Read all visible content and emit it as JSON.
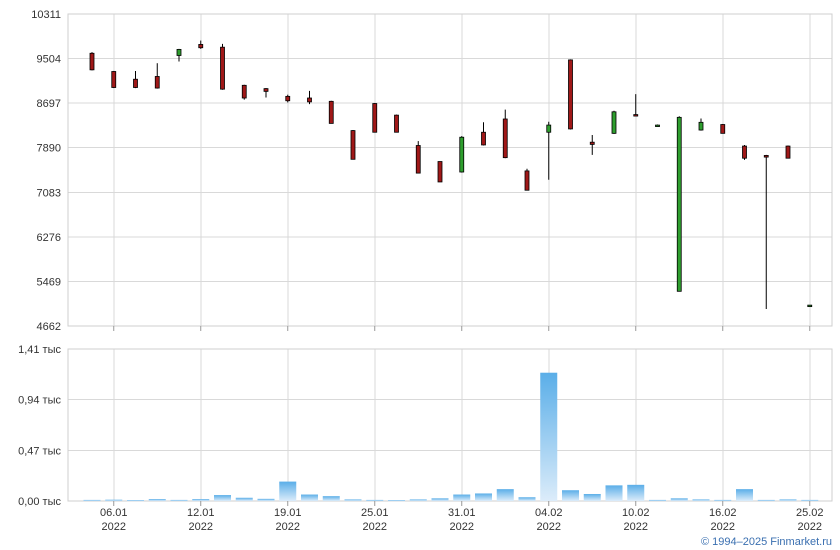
{
  "chart_data": [
    {
      "type": "candlestick",
      "y_ticks": [
        "10311",
        "9504",
        "8697",
        "7890",
        "7083",
        "6276",
        "5469",
        "4662"
      ],
      "ylim": [
        4662,
        10311
      ],
      "grid": true,
      "colors": {
        "up": "#2e9e2e",
        "down": "#a01818",
        "outline": "#000000"
      },
      "candles": [
        {
          "x": 1,
          "o": 9600,
          "h": 9620,
          "l": 9290,
          "c": 9300
        },
        {
          "x": 2,
          "o": 9270,
          "h": 9280,
          "l": 8970,
          "c": 8980
        },
        {
          "x": 3,
          "o": 9130,
          "h": 9280,
          "l": 8970,
          "c": 8980
        },
        {
          "x": 4,
          "o": 9180,
          "h": 9420,
          "l": 8960,
          "c": 8970
        },
        {
          "x": 5,
          "o": 9560,
          "h": 9680,
          "l": 9450,
          "c": 9670
        },
        {
          "x": 6,
          "o": 9760,
          "h": 9830,
          "l": 9680,
          "c": 9700
        },
        {
          "x": 7,
          "o": 9710,
          "h": 9770,
          "l": 8940,
          "c": 8950
        },
        {
          "x": 8,
          "o": 9020,
          "h": 9030,
          "l": 8760,
          "c": 8790
        },
        {
          "x": 9,
          "o": 8960,
          "h": 8970,
          "l": 8800,
          "c": 8910
        },
        {
          "x": 10,
          "o": 8820,
          "h": 8850,
          "l": 8710,
          "c": 8740
        },
        {
          "x": 11,
          "o": 8790,
          "h": 8920,
          "l": 8680,
          "c": 8720
        },
        {
          "x": 12,
          "o": 8730,
          "h": 8740,
          "l": 8330,
          "c": 8330
        },
        {
          "x": 13,
          "o": 8200,
          "h": 8210,
          "l": 7680,
          "c": 7680
        },
        {
          "x": 14,
          "o": 8690,
          "h": 8700,
          "l": 8170,
          "c": 8170
        },
        {
          "x": 15,
          "o": 8480,
          "h": 8490,
          "l": 8170,
          "c": 8170
        },
        {
          "x": 16,
          "o": 7930,
          "h": 8010,
          "l": 7430,
          "c": 7430
        },
        {
          "x": 17,
          "o": 7640,
          "h": 7640,
          "l": 7270,
          "c": 7270
        },
        {
          "x": 18,
          "o": 7450,
          "h": 8100,
          "l": 7440,
          "c": 8080
        },
        {
          "x": 19,
          "o": 8170,
          "h": 8350,
          "l": 7930,
          "c": 7940
        },
        {
          "x": 20,
          "o": 8410,
          "h": 8580,
          "l": 7700,
          "c": 7710
        },
        {
          "x": 21,
          "o": 7470,
          "h": 7510,
          "l": 7120,
          "c": 7120
        },
        {
          "x": 22,
          "o": 8170,
          "h": 8360,
          "l": 7310,
          "c": 8300
        },
        {
          "x": 23,
          "o": 9480,
          "h": 9490,
          "l": 8220,
          "c": 8230
        },
        {
          "x": 24,
          "o": 7990,
          "h": 8120,
          "l": 7760,
          "c": 7950
        },
        {
          "x": 25,
          "o": 8150,
          "h": 8560,
          "l": 8140,
          "c": 8540
        },
        {
          "x": 26,
          "o": 8490,
          "h": 8860,
          "l": 8470,
          "c": 8470
        },
        {
          "x": 27,
          "o": 8300,
          "h": 8310,
          "l": 8290,
          "c": 8300
        },
        {
          "x": 28,
          "o": 5290,
          "h": 8460,
          "l": 5290,
          "c": 8440
        },
        {
          "x": 29,
          "o": 8210,
          "h": 8420,
          "l": 8200,
          "c": 8350
        },
        {
          "x": 30,
          "o": 8310,
          "h": 8320,
          "l": 8150,
          "c": 8150
        },
        {
          "x": 31,
          "o": 7920,
          "h": 7940,
          "l": 7670,
          "c": 7700
        },
        {
          "x": 32,
          "o": 7750,
          "h": 7760,
          "l": 4970,
          "c": 7720
        },
        {
          "x": 33,
          "o": 7920,
          "h": 7930,
          "l": 7700,
          "c": 7700
        },
        {
          "x": 34,
          "o": 5040,
          "h": 5040,
          "l": 5040,
          "c": 5040
        }
      ]
    },
    {
      "type": "bar",
      "y_ticks": [
        "1,41 тыс",
        "0,94 тыс",
        "0,47 тыс",
        "0,00 тыс"
      ],
      "ylim": [
        0,
        1410
      ],
      "grid": true,
      "colors": {
        "bar_top": "#5aaee8",
        "bar_bottom": "#dcecfa"
      },
      "values": [
        10,
        12,
        8,
        18,
        10,
        18,
        55,
        30,
        20,
        180,
        60,
        45,
        15,
        10,
        8,
        15,
        25,
        60,
        70,
        110,
        35,
        1190,
        100,
        65,
        145,
        150,
        10,
        25,
        15,
        10,
        110,
        10,
        15,
        10
      ]
    }
  ],
  "x_axis": {
    "ticks": [
      {
        "x": 2,
        "day": "06.01",
        "year": "2022"
      },
      {
        "x": 6,
        "day": "12.01",
        "year": "2022"
      },
      {
        "x": 10,
        "day": "19.01",
        "year": "2022"
      },
      {
        "x": 14,
        "day": "25.01",
        "year": "2022"
      },
      {
        "x": 18,
        "day": "31.01",
        "year": "2022"
      },
      {
        "x": 22,
        "day": "04.02",
        "year": "2022"
      },
      {
        "x": 26,
        "day": "10.02",
        "year": "2022"
      },
      {
        "x": 30,
        "day": "16.02",
        "year": "2022"
      },
      {
        "x": 34,
        "day": "25.02",
        "year": "2022"
      }
    ]
  },
  "footer": {
    "copyright": "© 1994–2025 Finmarket.ru"
  }
}
